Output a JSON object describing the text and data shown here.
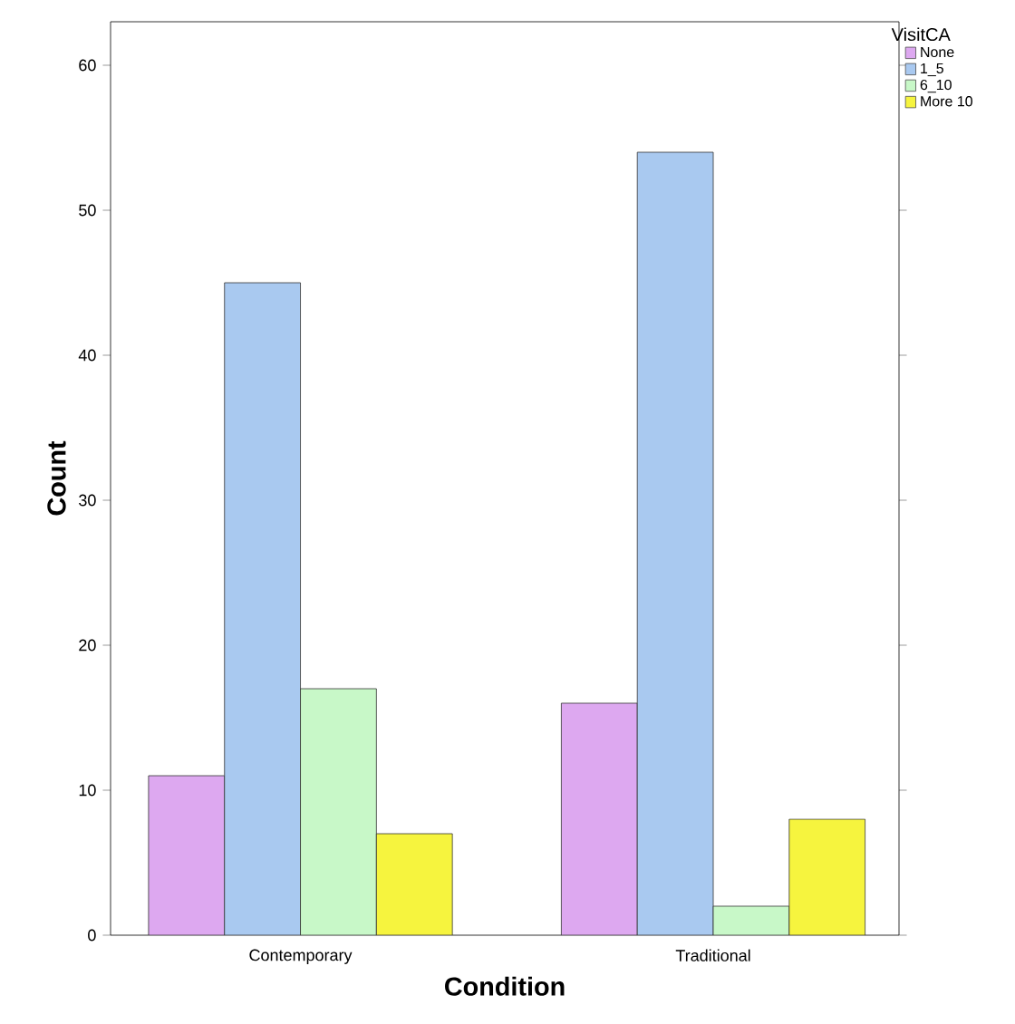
{
  "chart_data": {
    "type": "bar",
    "xlabel": "Condition",
    "ylabel": "Count",
    "legend_title": "VisitCA",
    "categories": [
      "Contemporary",
      "Traditional"
    ],
    "series": [
      {
        "name": "None",
        "color": "#dda8f0",
        "values": [
          11,
          16
        ]
      },
      {
        "name": "1_5",
        "color": "#a9c9f0",
        "values": [
          45,
          54
        ]
      },
      {
        "name": "6_10",
        "color": "#c8f8c8",
        "values": [
          17,
          2
        ]
      },
      {
        "name": "More 10",
        "color": "#f6f43e",
        "values": [
          7,
          8
        ]
      }
    ],
    "ylim": [
      0,
      63
    ],
    "yticks": [
      0,
      10,
      20,
      30,
      40,
      50,
      60
    ],
    "grid": false,
    "legend": "top right"
  }
}
